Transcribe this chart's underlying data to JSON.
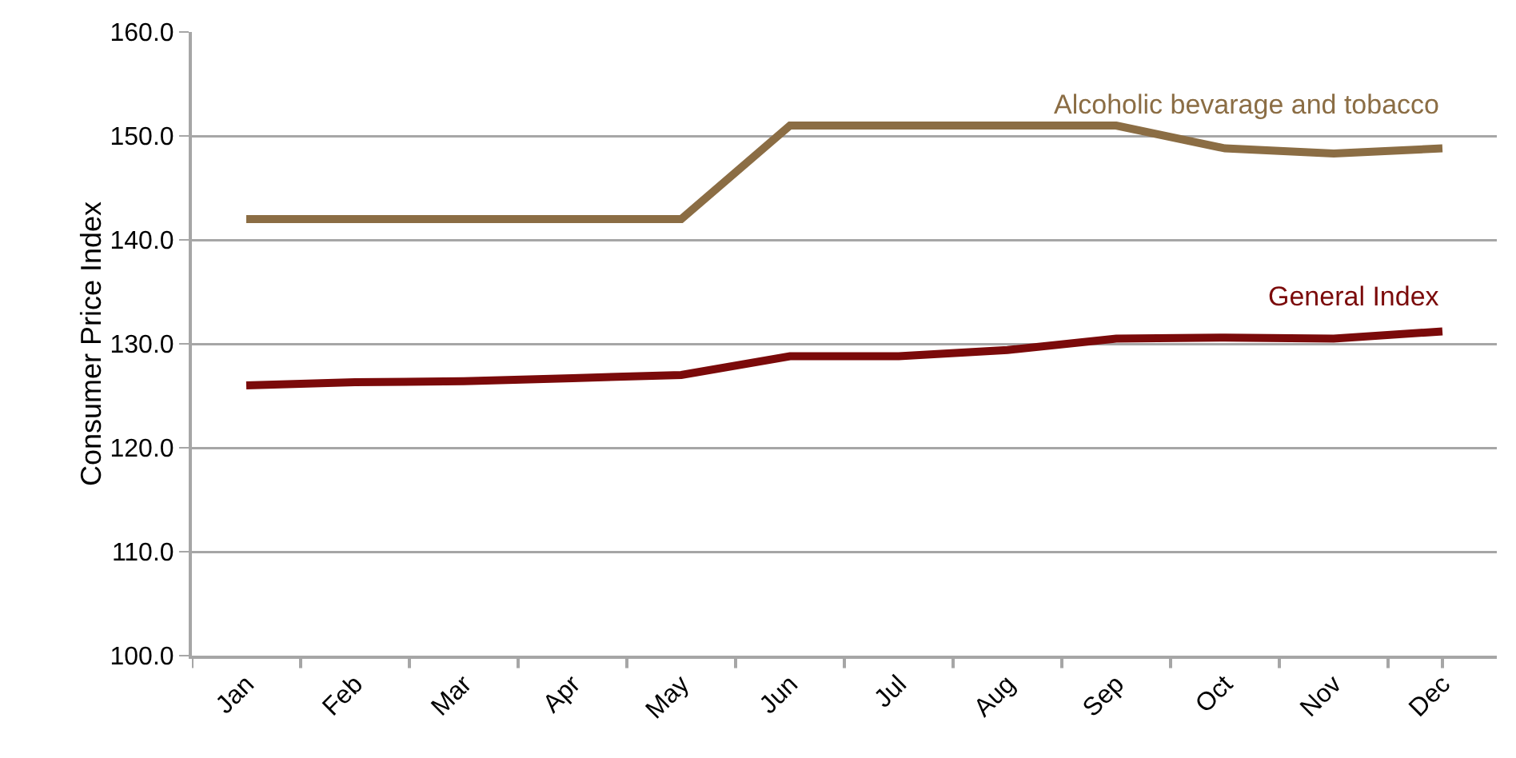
{
  "chart_data": {
    "type": "line",
    "ylabel": "Consumer Price Index",
    "categories": [
      "Jan",
      "Feb",
      "Mar",
      "Apr",
      "May",
      "Jun",
      "Jul",
      "Aug",
      "Sep",
      "Oct",
      "Nov",
      "Dec"
    ],
    "series": [
      {
        "name": "Alcoholic bevarage and tobacco",
        "color": "#8b6d44",
        "values": [
          142.0,
          142.0,
          142.0,
          142.0,
          142.0,
          151.0,
          151.0,
          151.0,
          151.0,
          148.8,
          148.3,
          148.8
        ]
      },
      {
        "name": "General Index",
        "color": "#7b0a0a",
        "values": [
          126.0,
          126.3,
          126.4,
          126.7,
          127.0,
          128.8,
          128.8,
          129.4,
          130.5,
          130.6,
          130.5,
          131.2
        ]
      }
    ],
    "ylim": [
      100,
      160
    ],
    "yticks": [
      {
        "value": 100,
        "label": "100.0"
      },
      {
        "value": 110,
        "label": "110.0"
      },
      {
        "value": 120,
        "label": "120.0"
      },
      {
        "value": 130,
        "label": "130.0"
      },
      {
        "value": 140,
        "label": "140.0"
      },
      {
        "value": 150,
        "label": "150.0"
      },
      {
        "value": 160,
        "label": "160.0"
      }
    ],
    "grid": "y",
    "legend": false,
    "marker": "none",
    "line_style": "solid"
  }
}
